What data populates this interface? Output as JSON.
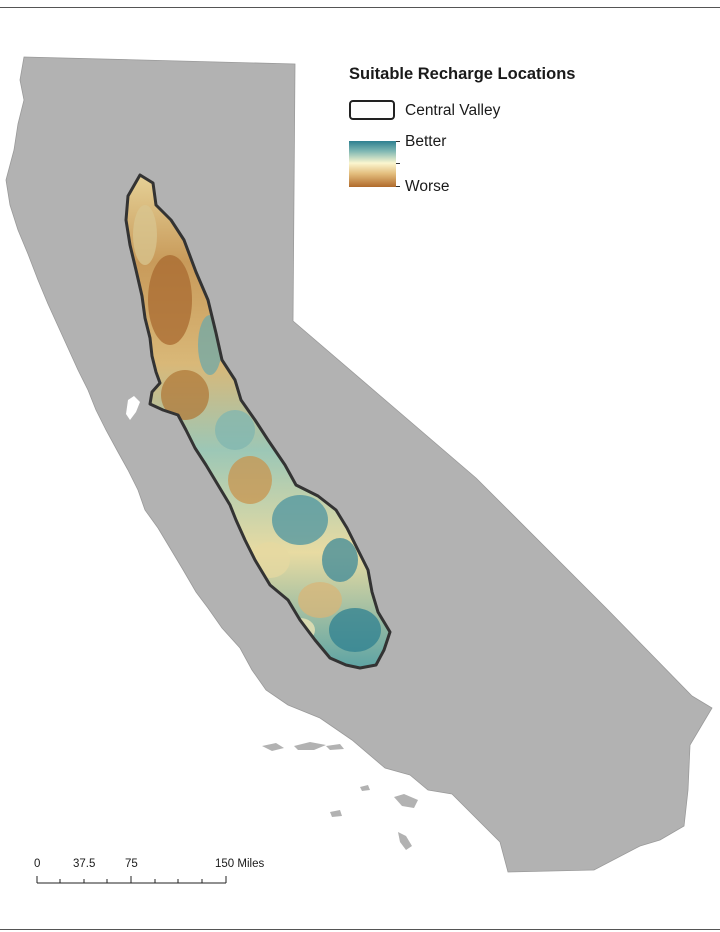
{
  "legend": {
    "title": "Suitable Recharge Locations",
    "boundary_label": "Central Valley",
    "better_label": "Better",
    "worse_label": "Worse"
  },
  "scale_bar": {
    "ticks": [
      "0",
      "37.5",
      "75",
      "150 Miles"
    ]
  },
  "colors": {
    "state_fill": "#b2b2b2",
    "valley_outline": "#333333",
    "ramp_better": "#2e7f90",
    "ramp_mid": "#fbf6cf",
    "ramp_worse": "#b06a2c"
  }
}
